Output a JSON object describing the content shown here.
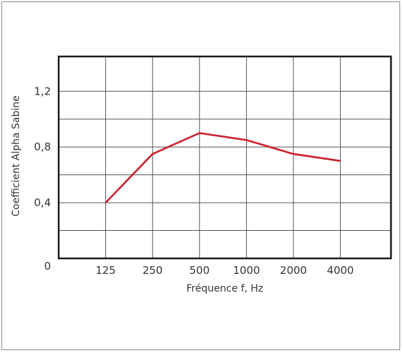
{
  "chart_data": {
    "type": "line",
    "x_categories": [
      "125",
      "250",
      "500",
      "1000",
      "2000",
      "4000"
    ],
    "series": [
      {
        "values": [
          0.4,
          0.75,
          0.9,
          0.85,
          0.75,
          0.7
        ],
        "color": "#cc1f2b"
      }
    ],
    "y_ticks": [
      {
        "value": 0,
        "label": "0"
      },
      {
        "value": 0.4,
        "label": "0,4"
      },
      {
        "value": 0.8,
        "label": "0,8"
      },
      {
        "value": 1.2,
        "label": "1,2"
      }
    ],
    "ylim": [
      0,
      1.45
    ],
    "y_gridlines": [
      0.2,
      0.4,
      0.6,
      0.8,
      1.0,
      1.2
    ],
    "x_gridline_count": 6,
    "xlabel": "Fréquence f, Hz",
    "ylabel": "Coefficient Alpha Sabine",
    "grid": true
  }
}
